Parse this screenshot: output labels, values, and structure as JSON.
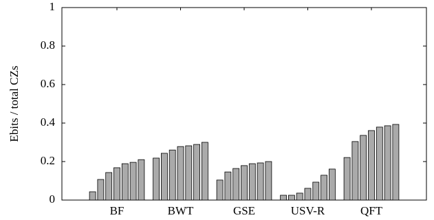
{
  "chart_data": {
    "type": "bar",
    "y_label": "Ebits / total CZs",
    "categories": [
      "BF",
      "BWT",
      "GSE",
      "USV-R",
      "QFT"
    ],
    "series": [
      {
        "color": "#aaaaaa",
        "values": [
          0.043,
          0.218,
          0.104,
          0.025,
          0.221
        ]
      },
      {
        "color": "#aaaaaa",
        "values": [
          0.107,
          0.243,
          0.146,
          0.025,
          0.304
        ]
      },
      {
        "color": "#aaaaaa",
        "values": [
          0.143,
          0.26,
          0.164,
          0.036,
          0.336
        ]
      },
      {
        "color": "#aaaaaa",
        "values": [
          0.168,
          0.278,
          0.179,
          0.061,
          0.361
        ]
      },
      {
        "color": "#aaaaaa",
        "values": [
          0.189,
          0.282,
          0.189,
          0.093,
          0.379
        ]
      },
      {
        "color": "#aaaaaa",
        "values": [
          0.196,
          0.289,
          0.193,
          0.129,
          0.386
        ]
      },
      {
        "color": "#aaaaaa",
        "values": [
          0.21,
          0.3,
          0.2,
          0.161,
          0.393
        ]
      }
    ],
    "ylim": [
      0,
      1
    ],
    "yticks": [
      0,
      0.2,
      0.4,
      0.6,
      0.8,
      1
    ],
    "grid": false
  }
}
